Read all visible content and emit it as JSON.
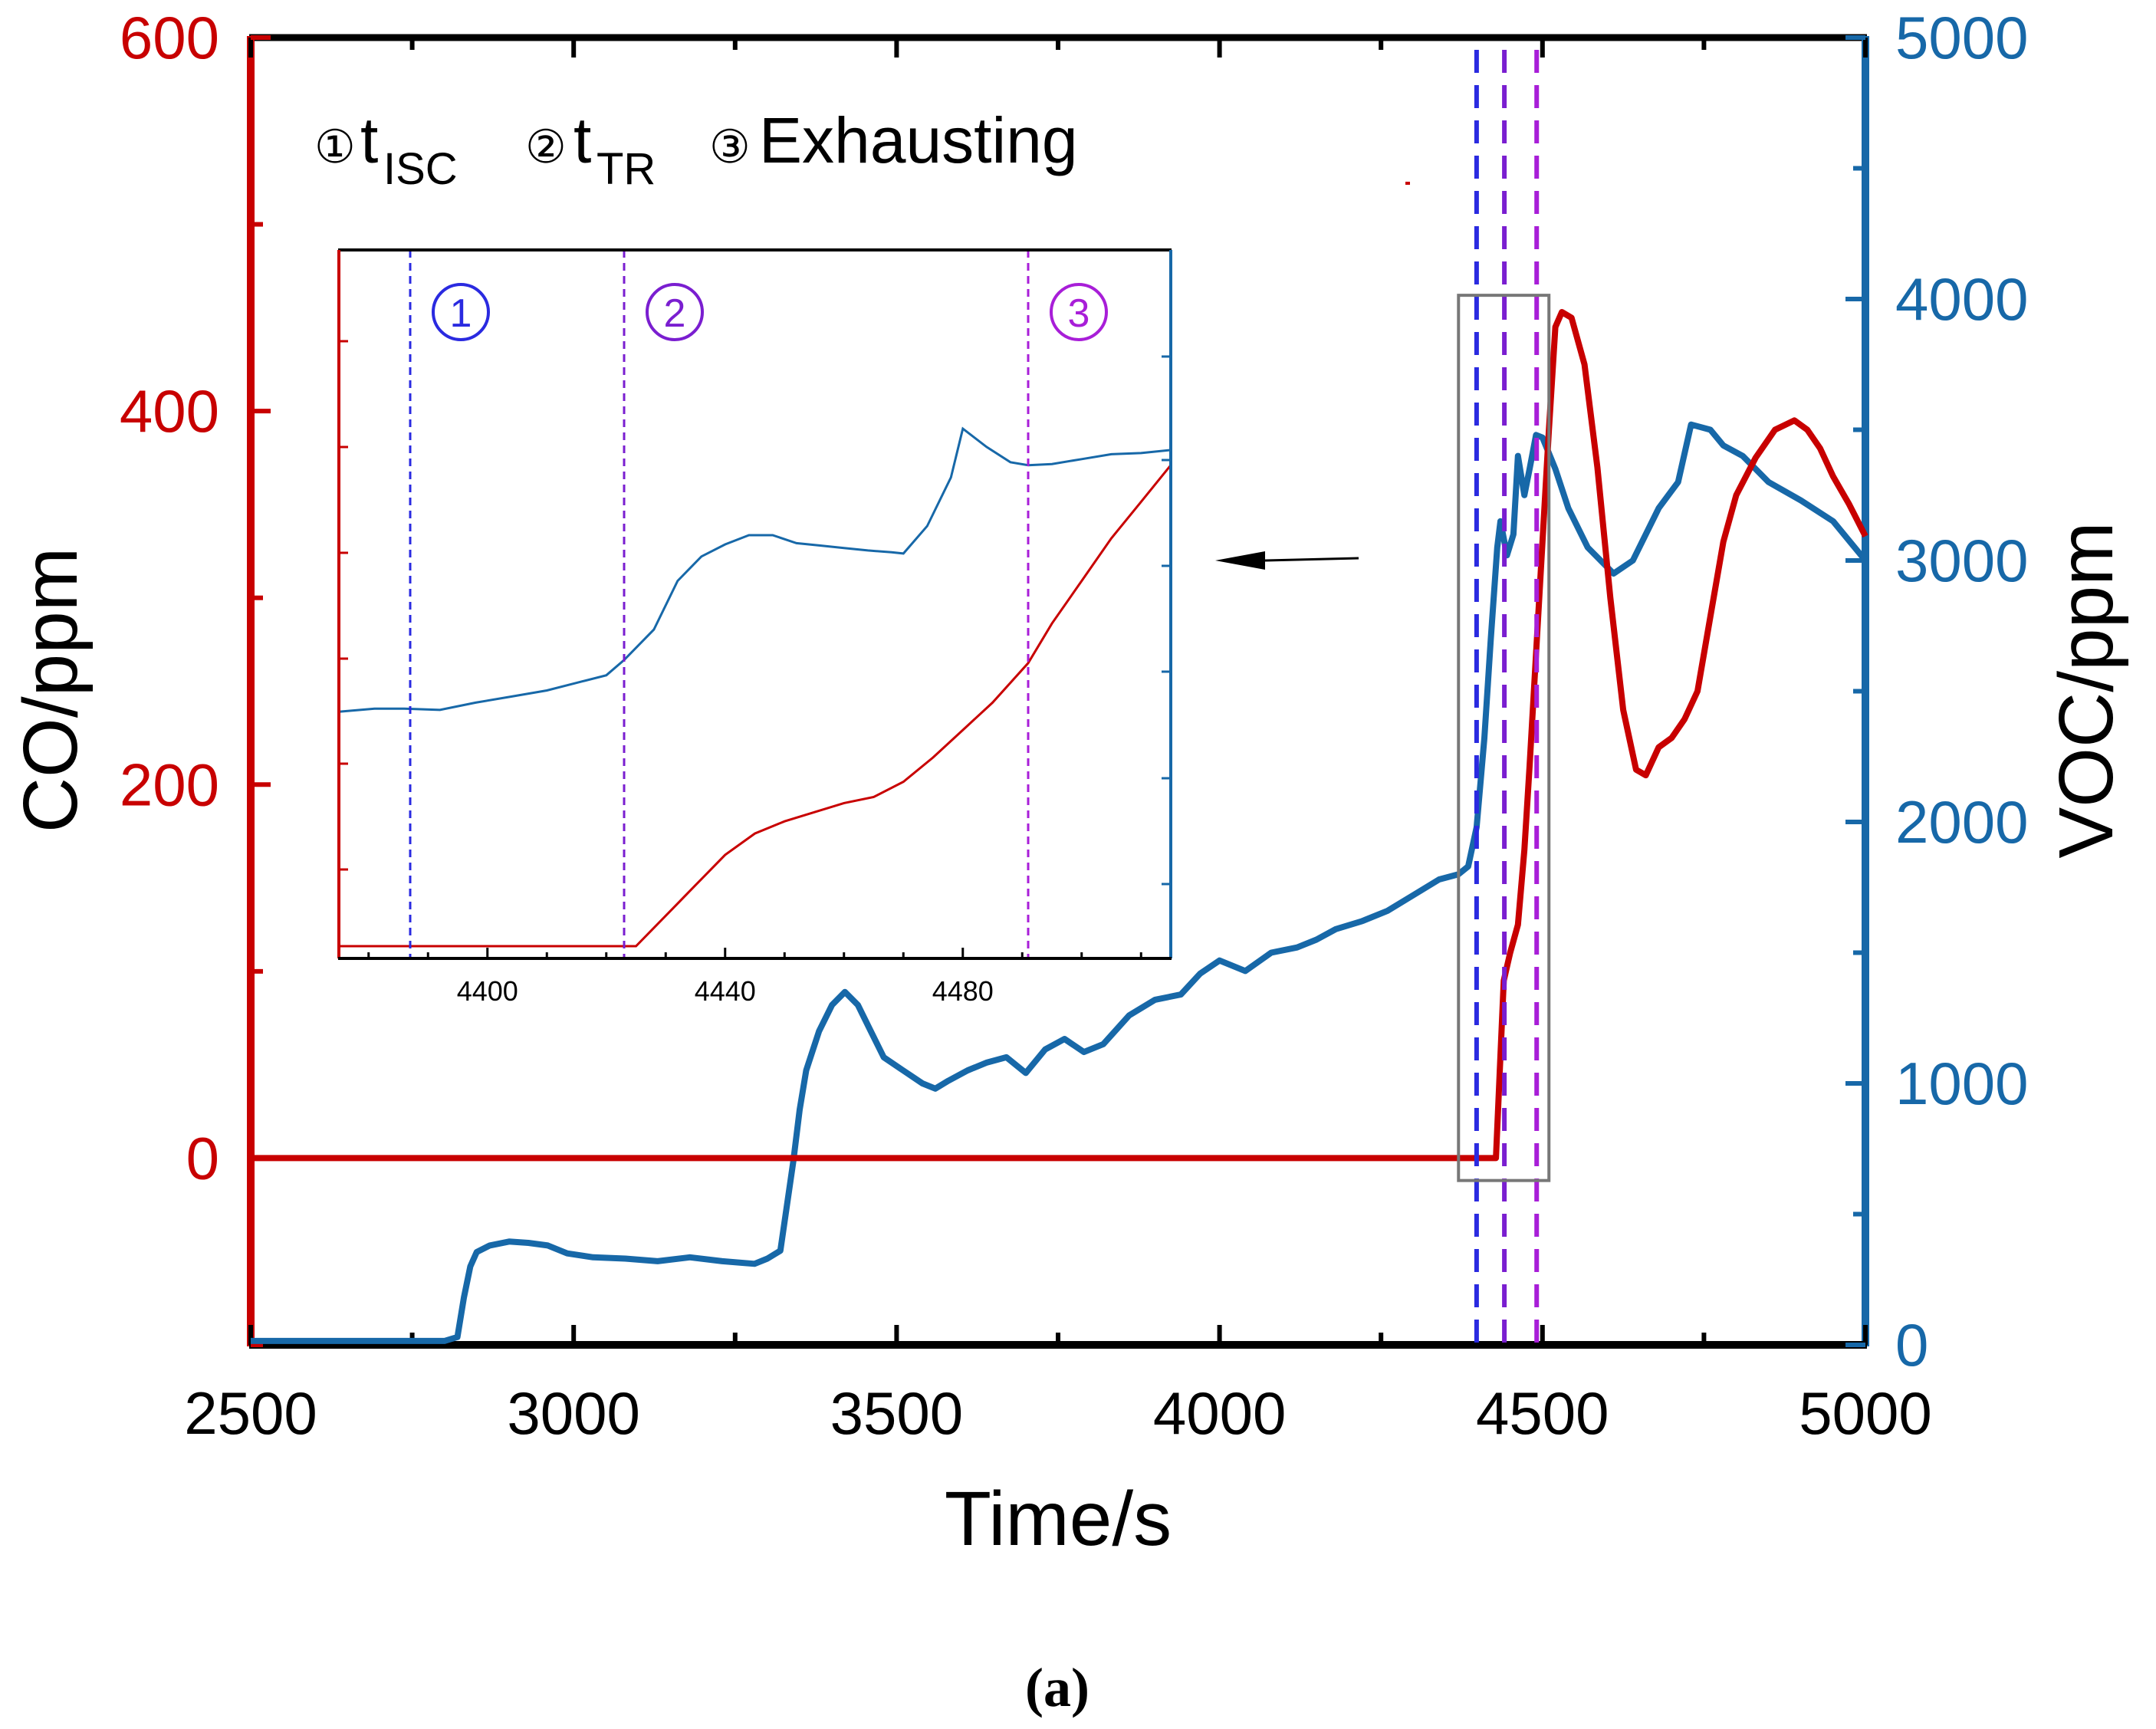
{
  "colors": {
    "co": "#c80000",
    "voc": "#1768a8",
    "axis": "#000000",
    "marker1": "#2a2ae0",
    "marker2": "#7a1ed0",
    "marker3": "#a81ed8",
    "box": "#777777"
  },
  "caption": "(a)",
  "chart_data": [
    {
      "type": "line",
      "title": "",
      "xlabel": "Time/s",
      "ylabel_left": "CO/ppm",
      "ylabel_right": "VOC/ppm",
      "xlim": [
        2500,
        5000
      ],
      "ylim_left": [
        -100,
        600
      ],
      "ylim_right": [
        0,
        5000
      ],
      "xticks": [
        2500,
        3000,
        3500,
        4000,
        4500,
        5000
      ],
      "xtick_labels": [
        "2500",
        "3000",
        "3500",
        "4000",
        "4500",
        "5000"
      ],
      "yticks_left": [
        0,
        200,
        400,
        600
      ],
      "ytick_labels_left": [
        "0",
        "200",
        "400",
        "600"
      ],
      "yticks_right": [
        0,
        1000,
        2000,
        3000,
        4000,
        5000
      ],
      "ytick_labels_right": [
        "0",
        "1000",
        "2000",
        "3000",
        "4000",
        "5000"
      ],
      "markers": [
        {
          "x": 4398,
          "color_key": "marker1"
        },
        {
          "x": 4441,
          "color_key": "marker2"
        },
        {
          "x": 4491,
          "color_key": "marker3"
        }
      ],
      "zoom_box": {
        "x0": 4370,
        "x1": 4510,
        "co0": -12,
        "co1": 462
      },
      "legend_items": [
        {
          "symbol": "①",
          "main": "t",
          "sub": "ISC"
        },
        {
          "symbol": "②",
          "main": "t",
          "sub": "TR"
        },
        {
          "symbol": "③",
          "main": "Exhausting",
          "sub": ""
        }
      ],
      "series": [
        {
          "name": "CO",
          "axis": "left",
          "color_key": "co",
          "x": [
            2500,
            4370,
            4428,
            4435,
            4440,
            4450,
            4462,
            4472,
            4480,
            4490,
            4500,
            4510,
            4520,
            4530,
            4545,
            4565,
            4585,
            4605,
            4625,
            4645,
            4660,
            4680,
            4700,
            4720,
            4740,
            4760,
            4780,
            4800,
            4830,
            4860,
            4890,
            4910,
            4930,
            4950,
            4975,
            5000
          ],
          "y": [
            0,
            0,
            0,
            55,
            95,
            110,
            125,
            165,
            210,
            270,
            330,
            390,
            445,
            453,
            450,
            425,
            370,
            300,
            240,
            208,
            205,
            220,
            225,
            235,
            250,
            290,
            330,
            355,
            375,
            390,
            395,
            390,
            380,
            365,
            350,
            333
          ]
        },
        {
          "name": "VOC",
          "axis": "right",
          "color_key": "voc",
          "x": [
            2500,
            2800,
            2820,
            2830,
            2840,
            2850,
            2870,
            2900,
            2930,
            2960,
            2990,
            3030,
            3080,
            3130,
            3180,
            3230,
            3280,
            3300,
            3320,
            3340,
            3350,
            3360,
            3380,
            3400,
            3420,
            3440,
            3460,
            3480,
            3510,
            3540,
            3560,
            3580,
            3610,
            3640,
            3670,
            3700,
            3730,
            3760,
            3790,
            3820,
            3860,
            3900,
            3940,
            3970,
            4000,
            4040,
            4080,
            4120,
            4150,
            4180,
            4220,
            4260,
            4300,
            4340,
            4370,
            4385,
            4398,
            4410,
            4420,
            4430,
            4435,
            4445,
            4455,
            4462,
            4472,
            4480,
            4490,
            4500,
            4520,
            4540,
            4570,
            4610,
            4640,
            4680,
            4710,
            4730,
            4760,
            4780,
            4810,
            4850,
            4900,
            4950,
            5000
          ],
          "y": [
            15,
            15,
            30,
            180,
            300,
            355,
            380,
            395,
            390,
            380,
            350,
            335,
            330,
            320,
            335,
            320,
            310,
            330,
            360,
            700,
            900,
            1050,
            1200,
            1300,
            1350,
            1300,
            1200,
            1100,
            1050,
            1000,
            980,
            1010,
            1050,
            1080,
            1100,
            1040,
            1130,
            1170,
            1120,
            1150,
            1260,
            1320,
            1340,
            1420,
            1470,
            1430,
            1500,
            1520,
            1550,
            1590,
            1620,
            1660,
            1720,
            1780,
            1800,
            1830,
            1980,
            2320,
            2700,
            3050,
            3150,
            3020,
            3100,
            3400,
            3250,
            3350,
            3480,
            3470,
            3350,
            3200,
            3050,
            2950,
            3000,
            3200,
            3300,
            3520,
            3500,
            3440,
            3400,
            3300,
            3230,
            3150,
            3000
          ]
        }
      ]
    },
    {
      "type": "line",
      "title": "",
      "note": "inset (zoom of boxed region)",
      "xlim": [
        4375,
        4515
      ],
      "xticks": [
        4400,
        4440,
        4480
      ],
      "xtick_labels": [
        "4400",
        "4440",
        "4480"
      ],
      "markers": [
        {
          "x": 4387,
          "label": "①",
          "color_key": "marker1"
        },
        {
          "x": 4423,
          "label": "②",
          "color_key": "marker2"
        },
        {
          "x": 4491,
          "label": "③",
          "color_key": "marker3"
        }
      ],
      "series": [
        {
          "name": "VOC",
          "color_key": "voc",
          "x": [
            4375,
            4381,
            4386,
            4392,
            4398,
            4404,
            4410,
            4416,
            4420,
            4423,
            4428,
            4432,
            4436,
            4440,
            4444,
            4448,
            4452,
            4456,
            4460,
            4464,
            4468,
            4470,
            4474,
            4478,
            4480,
            4484,
            4488,
            4491,
            4495,
            4500,
            4505,
            4510,
            4515
          ],
          "y": [
            0.385,
            0.39,
            0.39,
            0.388,
            0.4,
            0.41,
            0.42,
            0.435,
            0.445,
            0.47,
            0.52,
            0.6,
            0.64,
            0.66,
            0.675,
            0.675,
            0.662,
            0.658,
            0.654,
            0.65,
            0.647,
            0.645,
            0.69,
            0.77,
            0.85,
            0.82,
            0.795,
            0.79,
            0.792,
            0.8,
            0.808,
            0.81,
            0.815
          ]
        },
        {
          "name": "CO",
          "color_key": "co",
          "x": [
            4375,
            4425,
            4430,
            4435,
            4440,
            4445,
            4450,
            4455,
            4460,
            4465,
            4470,
            4475,
            4480,
            4485,
            4491,
            4495,
            4500,
            4505,
            4510,
            4515
          ],
          "y": [
            0.0,
            0.0,
            0.05,
            0.1,
            0.15,
            0.185,
            0.205,
            0.22,
            0.235,
            0.245,
            0.27,
            0.31,
            0.355,
            0.4,
            0.465,
            0.53,
            0.6,
            0.67,
            0.73,
            0.79
          ]
        }
      ]
    }
  ]
}
